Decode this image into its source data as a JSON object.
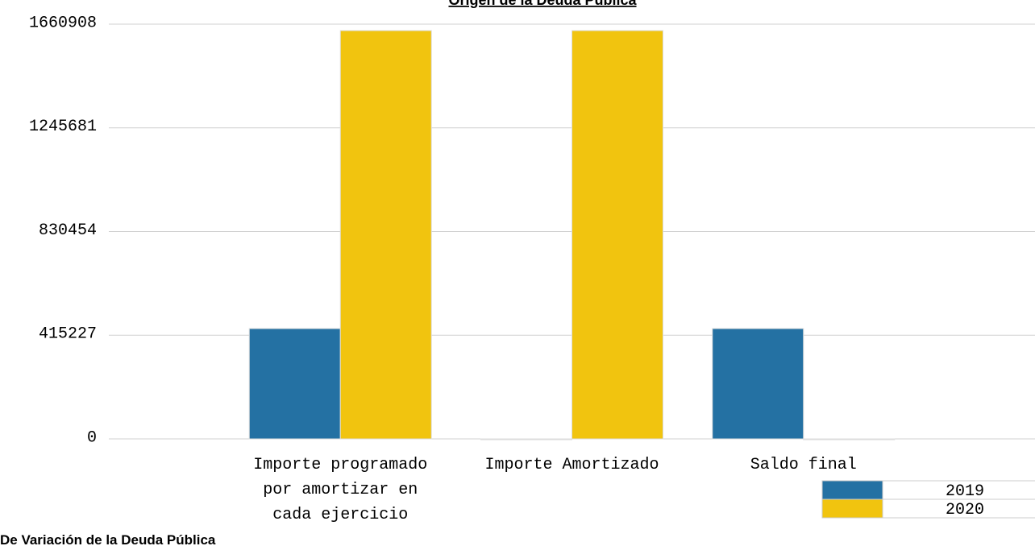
{
  "chart_data": {
    "type": "bar",
    "title": "Origen de la Deuda Pública",
    "subtitle": "De Variación de la Deuda Pública",
    "categories": [
      "Importe programado por amortizar en cada ejercicio",
      "Importe Amortizado",
      "Saldo final"
    ],
    "series": [
      {
        "name": "2019",
        "color": "#2471a3",
        "values": [
          441800,
          0,
          441800
        ]
      },
      {
        "name": "2020",
        "color": "#f1c40f",
        "values": [
          1635100,
          1635100,
          0
        ]
      }
    ],
    "ylim": [
      0,
      1660908
    ],
    "yticks": [
      0,
      415227,
      830454,
      1245681,
      1660908
    ],
    "grid": true,
    "legend": "lower right"
  }
}
